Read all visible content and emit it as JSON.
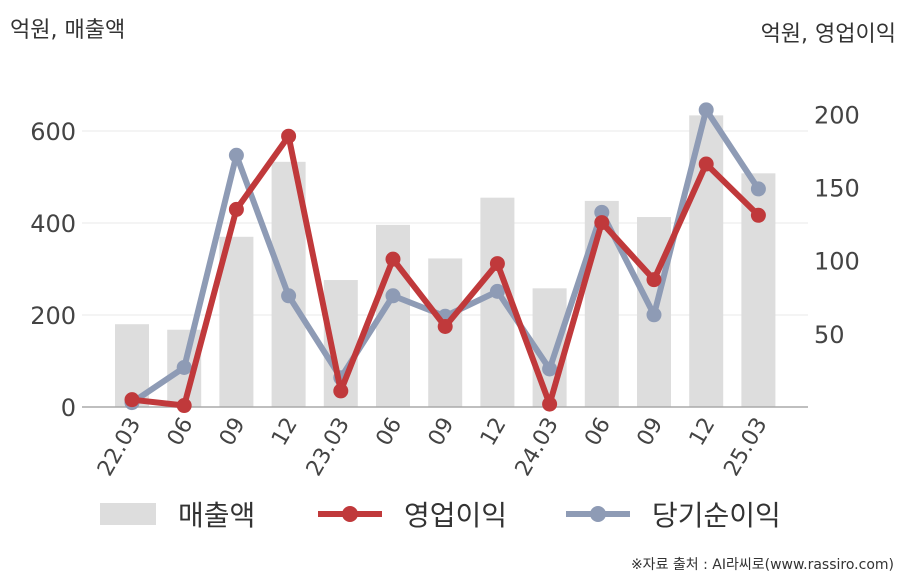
{
  "chart_data": {
    "type": "bar+line",
    "left_unit_label": "억원, 매출액",
    "right_unit_label": "억원, 영업이익",
    "categories": [
      "22.03",
      "06",
      "09",
      "12",
      "23.03",
      "06",
      "09",
      "12",
      "24.03",
      "06",
      "09",
      "12",
      "25.03"
    ],
    "left_axis": {
      "ticks": [
        0,
        200,
        400,
        600
      ],
      "range": [
        0,
        700
      ]
    },
    "right_axis": {
      "ticks": [
        50,
        100,
        150,
        200
      ],
      "range": [
        0,
        220
      ]
    },
    "series": [
      {
        "name": "매출액",
        "kind": "bar",
        "axis": "left",
        "values": [
          180,
          168,
          370,
          533,
          276,
          396,
          323,
          455,
          258,
          448,
          413,
          634,
          508
        ]
      },
      {
        "name": "영업이익",
        "kind": "line",
        "axis": "right",
        "values": [
          5,
          1,
          135,
          185,
          11,
          101,
          55,
          98,
          2,
          126,
          87,
          166,
          131
        ]
      },
      {
        "name": "당기순이익",
        "kind": "line",
        "axis": "right",
        "values": [
          3,
          27,
          172,
          76,
          20,
          76,
          62,
          79,
          26,
          133,
          63,
          203,
          149
        ]
      }
    ],
    "colors": {
      "bar": "#dddddd",
      "operating": "#c0393b",
      "net": "#8e9bb5",
      "grid": "#e8e8e8",
      "baseline": "#aaaaaa"
    },
    "grid": true,
    "legend_position": "bottom"
  },
  "legend": {
    "items": [
      {
        "label": "매출액",
        "style": "bar"
      },
      {
        "label": "영업이익",
        "style": "line"
      },
      {
        "label": "당기순이익",
        "style": "line"
      }
    ]
  },
  "source": "※자료 출처 : AI라씨로(www.rassiro.com)"
}
